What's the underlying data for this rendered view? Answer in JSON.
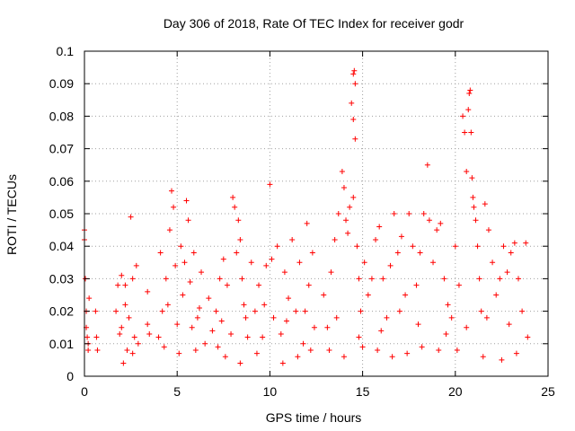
{
  "chart_data": {
    "type": "scatter",
    "title": "Day 306 of 2018, Rate Of TEC Index for receiver godr",
    "xlabel": "GPS time / hours",
    "ylabel": "ROTI / TECUs",
    "xlim": [
      0,
      25
    ],
    "ylim": [
      0,
      0.1
    ],
    "xticks": [
      0,
      5,
      10,
      15,
      20,
      25
    ],
    "xtick_labels": [
      "0",
      "5",
      "10",
      "15",
      "20",
      "25"
    ],
    "yticks": [
      0,
      0.01,
      0.02,
      0.03,
      0.04,
      0.05,
      0.06,
      0.07,
      0.08,
      0.09,
      0.1
    ],
    "ytick_labels": [
      "0",
      "0.01",
      "0.02",
      "0.03",
      "0.04",
      "0.05",
      "0.06",
      "0.07",
      "0.08",
      "0.09",
      "0.1"
    ],
    "grid": true,
    "marker": "+",
    "color": "#ff0000",
    "series": [
      {
        "name": "ROTI",
        "points": [
          [
            0.0,
            0.045
          ],
          [
            0.0,
            0.042
          ],
          [
            0.05,
            0.03
          ],
          [
            0.1,
            0.02
          ],
          [
            0.15,
            0.012
          ],
          [
            0.2,
            0.008
          ],
          [
            0.25,
            0.024
          ],
          [
            0.1,
            0.015
          ],
          [
            0.2,
            0.01
          ],
          [
            0.6,
            0.02
          ],
          [
            0.65,
            0.012
          ],
          [
            0.7,
            0.008
          ],
          [
            1.7,
            0.02
          ],
          [
            1.8,
            0.028
          ],
          [
            1.9,
            0.013
          ],
          [
            2.0,
            0.031
          ],
          [
            2.1,
            0.004
          ],
          [
            2.2,
            0.028
          ],
          [
            2.3,
            0.008
          ],
          [
            2.4,
            0.018
          ],
          [
            2.5,
            0.049
          ],
          [
            2.6,
            0.03
          ],
          [
            2.7,
            0.012
          ],
          [
            2.8,
            0.034
          ],
          [
            2.9,
            0.01
          ],
          [
            2.0,
            0.015
          ],
          [
            2.2,
            0.022
          ],
          [
            2.6,
            0.007
          ],
          [
            3.4,
            0.016
          ],
          [
            3.5,
            0.013
          ],
          [
            3.4,
            0.026
          ],
          [
            4.0,
            0.012
          ],
          [
            4.1,
            0.038
          ],
          [
            4.2,
            0.02
          ],
          [
            4.4,
            0.03
          ],
          [
            4.6,
            0.045
          ],
          [
            4.7,
            0.057
          ],
          [
            4.8,
            0.052
          ],
          [
            4.9,
            0.034
          ],
          [
            5.0,
            0.016
          ],
          [
            5.2,
            0.04
          ],
          [
            5.4,
            0.035
          ],
          [
            5.5,
            0.054
          ],
          [
            5.6,
            0.048
          ],
          [
            5.7,
            0.029
          ],
          [
            5.8,
            0.015
          ],
          [
            5.9,
            0.038
          ],
          [
            6.1,
            0.018
          ],
          [
            6.3,
            0.032
          ],
          [
            6.5,
            0.01
          ],
          [
            6.7,
            0.024
          ],
          [
            6.9,
            0.014
          ],
          [
            4.3,
            0.009
          ],
          [
            5.1,
            0.007
          ],
          [
            6.0,
            0.008
          ],
          [
            4.5,
            0.022
          ],
          [
            5.3,
            0.025
          ],
          [
            6.2,
            0.021
          ],
          [
            7.1,
            0.02
          ],
          [
            7.3,
            0.03
          ],
          [
            7.5,
            0.036
          ],
          [
            7.7,
            0.028
          ],
          [
            7.9,
            0.013
          ],
          [
            8.0,
            0.055
          ],
          [
            8.1,
            0.052
          ],
          [
            8.2,
            0.038
          ],
          [
            8.3,
            0.048
          ],
          [
            8.4,
            0.042
          ],
          [
            8.5,
            0.03
          ],
          [
            8.6,
            0.022
          ],
          [
            8.8,
            0.012
          ],
          [
            7.2,
            0.009
          ],
          [
            7.6,
            0.006
          ],
          [
            8.4,
            0.004
          ],
          [
            7.4,
            0.017
          ],
          [
            8.7,
            0.018
          ],
          [
            9.0,
            0.035
          ],
          [
            9.2,
            0.02
          ],
          [
            9.4,
            0.028
          ],
          [
            9.6,
            0.012
          ],
          [
            9.8,
            0.034
          ],
          [
            10.0,
            0.059
          ],
          [
            10.1,
            0.036
          ],
          [
            10.2,
            0.018
          ],
          [
            10.4,
            0.04
          ],
          [
            10.6,
            0.013
          ],
          [
            10.8,
            0.032
          ],
          [
            11.0,
            0.024
          ],
          [
            11.2,
            0.042
          ],
          [
            11.4,
            0.02
          ],
          [
            11.6,
            0.035
          ],
          [
            11.8,
            0.01
          ],
          [
            12.0,
            0.047
          ],
          [
            12.1,
            0.028
          ],
          [
            12.3,
            0.038
          ],
          [
            12.4,
            0.015
          ],
          [
            9.3,
            0.007
          ],
          [
            10.7,
            0.004
          ],
          [
            11.5,
            0.006
          ],
          [
            12.2,
            0.008
          ],
          [
            9.7,
            0.022
          ],
          [
            10.9,
            0.017
          ],
          [
            11.9,
            0.02
          ],
          [
            12.9,
            0.025
          ],
          [
            13.1,
            0.015
          ],
          [
            13.3,
            0.032
          ],
          [
            13.5,
            0.042
          ],
          [
            13.7,
            0.05
          ],
          [
            13.9,
            0.063
          ],
          [
            14.0,
            0.058
          ],
          [
            14.1,
            0.048
          ],
          [
            14.2,
            0.044
          ],
          [
            14.3,
            0.052
          ],
          [
            14.4,
            0.084
          ],
          [
            14.5,
            0.093
          ],
          [
            14.55,
            0.094
          ],
          [
            14.6,
            0.09
          ],
          [
            14.5,
            0.079
          ],
          [
            14.6,
            0.073
          ],
          [
            14.5,
            0.055
          ],
          [
            14.7,
            0.04
          ],
          [
            14.8,
            0.03
          ],
          [
            14.9,
            0.02
          ],
          [
            15.1,
            0.035
          ],
          [
            15.3,
            0.025
          ],
          [
            13.2,
            0.008
          ],
          [
            14.0,
            0.006
          ],
          [
            15.0,
            0.009
          ],
          [
            13.6,
            0.018
          ],
          [
            14.8,
            0.012
          ],
          [
            15.5,
            0.03
          ],
          [
            15.7,
            0.042
          ],
          [
            15.9,
            0.046
          ],
          [
            16.1,
            0.03
          ],
          [
            16.3,
            0.018
          ],
          [
            16.5,
            0.034
          ],
          [
            16.7,
            0.05
          ],
          [
            16.9,
            0.038
          ],
          [
            17.1,
            0.043
          ],
          [
            17.3,
            0.025
          ],
          [
            17.5,
            0.05
          ],
          [
            17.7,
            0.04
          ],
          [
            17.9,
            0.028
          ],
          [
            18.1,
            0.038
          ],
          [
            18.3,
            0.05
          ],
          [
            18.5,
            0.065
          ],
          [
            18.6,
            0.048
          ],
          [
            18.8,
            0.035
          ],
          [
            19.0,
            0.045
          ],
          [
            19.2,
            0.047
          ],
          [
            19.4,
            0.03
          ],
          [
            19.6,
            0.022
          ],
          [
            19.8,
            0.018
          ],
          [
            15.8,
            0.008
          ],
          [
            16.6,
            0.006
          ],
          [
            17.4,
            0.007
          ],
          [
            18.2,
            0.009
          ],
          [
            19.1,
            0.008
          ],
          [
            16.0,
            0.014
          ],
          [
            17.0,
            0.02
          ],
          [
            18.0,
            0.016
          ],
          [
            19.5,
            0.013
          ],
          [
            20.0,
            0.04
          ],
          [
            20.2,
            0.028
          ],
          [
            20.4,
            0.08
          ],
          [
            20.5,
            0.075
          ],
          [
            20.6,
            0.063
          ],
          [
            20.7,
            0.082
          ],
          [
            20.75,
            0.087
          ],
          [
            20.8,
            0.088
          ],
          [
            20.85,
            0.075
          ],
          [
            20.9,
            0.061
          ],
          [
            20.95,
            0.055
          ],
          [
            21.0,
            0.052
          ],
          [
            21.1,
            0.048
          ],
          [
            21.2,
            0.04
          ],
          [
            21.3,
            0.03
          ],
          [
            21.4,
            0.02
          ],
          [
            21.6,
            0.053
          ],
          [
            21.8,
            0.045
          ],
          [
            22.0,
            0.035
          ],
          [
            22.2,
            0.025
          ],
          [
            22.4,
            0.03
          ],
          [
            22.6,
            0.04
          ],
          [
            22.8,
            0.032
          ],
          [
            23.0,
            0.038
          ],
          [
            23.2,
            0.041
          ],
          [
            23.4,
            0.03
          ],
          [
            23.6,
            0.02
          ],
          [
            23.8,
            0.041
          ],
          [
            23.9,
            0.012
          ],
          [
            20.1,
            0.008
          ],
          [
            21.5,
            0.006
          ],
          [
            22.5,
            0.005
          ],
          [
            23.3,
            0.007
          ],
          [
            20.6,
            0.015
          ],
          [
            21.7,
            0.018
          ],
          [
            22.9,
            0.016
          ]
        ]
      }
    ]
  }
}
